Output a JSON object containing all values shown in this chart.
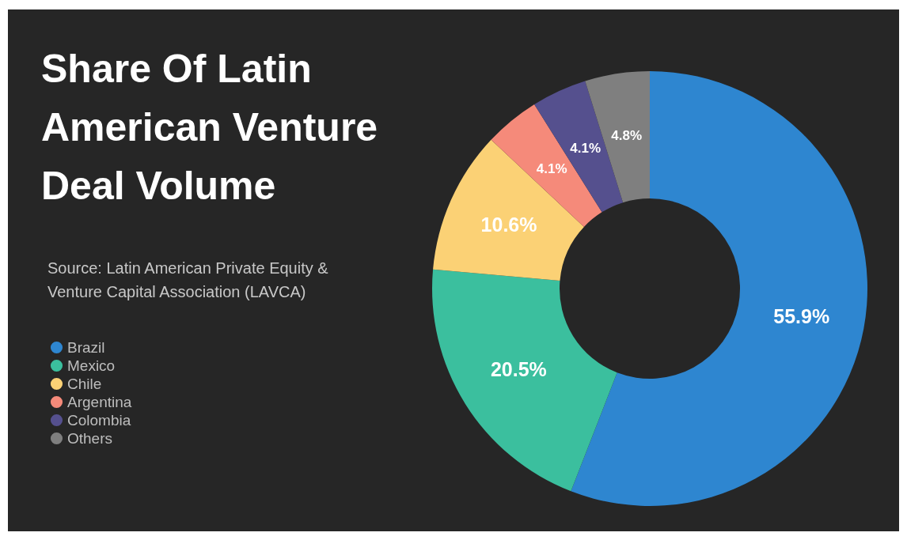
{
  "chart_data": {
    "type": "donut",
    "title": "Share Of Latin American Venture Deal Volume",
    "categories": [
      "Brazil",
      "Mexico",
      "Chile",
      "Argentina",
      "Colombia",
      "Others"
    ],
    "values": [
      55.9,
      20.5,
      10.6,
      4.1,
      4.1,
      4.8
    ],
    "colors": [
      "#2e86d0",
      "#3bbf9e",
      "#fbd175",
      "#f58a7a",
      "#55508e",
      "#7f7f7f"
    ],
    "value_labels": [
      "55.9%",
      "20.5%",
      "10.6%",
      "4.1%",
      "4.1%",
      "4.8%"
    ],
    "annotations": [
      "Source: Latin American Private Equity & Venture Capital Association (LAVCA)"
    ],
    "legend": "left"
  }
}
